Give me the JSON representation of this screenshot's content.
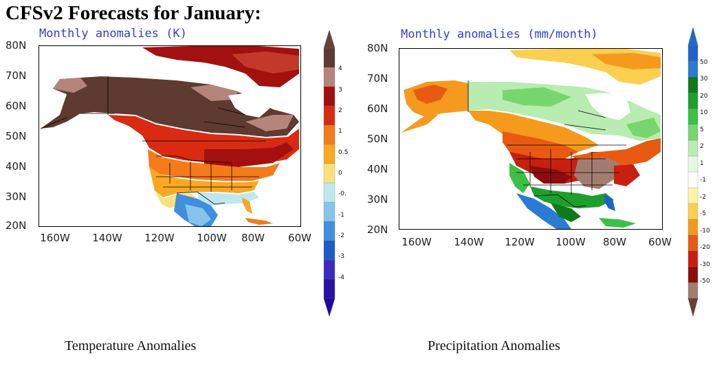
{
  "title": "CFSv2 Forecasts for January:",
  "colors": {
    "subtitle_text": "#2e3fd6",
    "ocean": "#ffffff",
    "border_lines": "#000000"
  },
  "panels": [
    {
      "id": "temperature",
      "subtitle": "Monthly anomalies (K)",
      "caption": "Temperature Anomalies",
      "lat_labels": [
        "80N",
        "70N",
        "60N",
        "50N",
        "40N",
        "30N",
        "20N"
      ],
      "lon_labels": [
        "160W",
        "140W",
        "120W",
        "100W",
        "80W",
        "60W"
      ],
      "colorbar": {
        "labels": [
          "4",
          "3",
          "2",
          "1",
          "0.5",
          "0",
          "-0.",
          "-1",
          "-2",
          "-3",
          "-4"
        ],
        "colors": [
          "#5e3a31",
          "#b5847a",
          "#a31010",
          "#d92a12",
          "#f47a1c",
          "#f9a820",
          "#fbe07c",
          "#bfe7f0",
          "#86c4eb",
          "#3f8ee0",
          "#1f5bc9",
          "#3b2ac2",
          "#2b12a8"
        ],
        "top_arrow": "#6b4038",
        "bottom_arrow": "#1e0aa0"
      }
    },
    {
      "id": "precipitation",
      "subtitle": "Monthly anomalies (mm/month)",
      "caption": "Precipitation Anomalies",
      "lat_labels": [
        "80N",
        "70N",
        "60N",
        "50N",
        "40N",
        "30N",
        "20N"
      ],
      "lon_labels": [
        "160W",
        "140W",
        "120W",
        "100W",
        "80W",
        "60W"
      ],
      "colorbar": {
        "labels": [
          "50",
          "30",
          "20",
          "10",
          "5",
          "2",
          "1",
          "-1",
          "-2",
          "-5",
          "-10",
          "-20",
          "-30",
          "-50"
        ],
        "colors": [
          "#1f63c9",
          "#2b7bd4",
          "#0f7a1c",
          "#1e9e2c",
          "#3cbf45",
          "#78d66e",
          "#b8ecb0",
          "#e6f7e2",
          "#ffffff",
          "#fdf3a8",
          "#fbd050",
          "#f59a1c",
          "#e85a12",
          "#c72010",
          "#8f0c0c",
          "#a37c70"
        ],
        "top_arrow": "#1e6bd0",
        "bottom_arrow": "#6b4038"
      }
    }
  ]
}
